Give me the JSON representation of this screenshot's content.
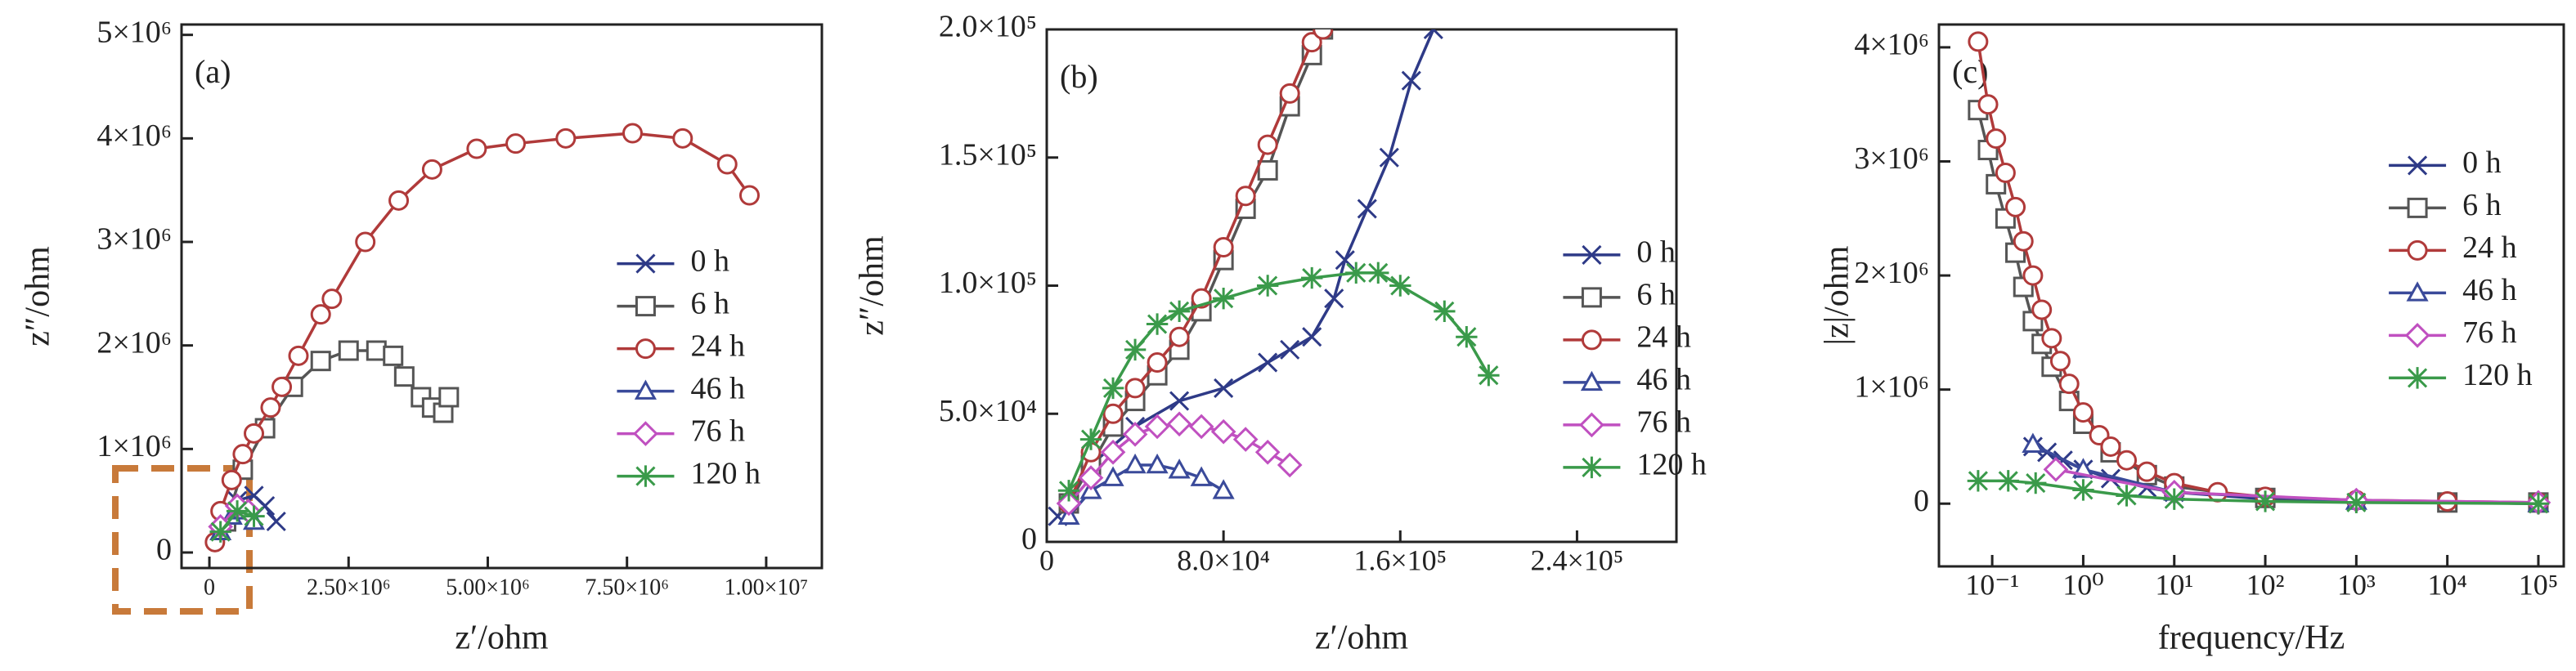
{
  "chart_data": [
    {
      "type": "scatter-line",
      "panel_label": "(a)",
      "xlabel": "z′/ohm",
      "ylabel": "z″/ohm",
      "xlim": [
        -500000,
        11000000
      ],
      "ylim": [
        -150000,
        5100000
      ],
      "xticks": [
        0,
        {
          "value": 2500000,
          "label": "2.50×10⁶"
        },
        {
          "value": 5000000,
          "label": "5.00×10⁶"
        },
        {
          "value": 7500000,
          "label": "7.50×10⁶"
        },
        {
          "value": 10000000,
          "label": "1.00×10⁷"
        }
      ],
      "yticks": [
        0,
        {
          "value": 1000000,
          "label": "1×10⁶"
        },
        {
          "value": 2000000,
          "label": "2×10⁶"
        },
        {
          "value": 3000000,
          "label": "3×10⁶"
        },
        {
          "value": 4000000,
          "label": "4×10⁶"
        },
        {
          "value": 5000000,
          "label": "5×10⁶"
        }
      ],
      "series": [
        {
          "name": "0 h",
          "color": "#2e3a87",
          "marker": "x",
          "x": [
            200000,
            500000,
            800000,
            1000000,
            1200000
          ],
          "values": [
            300000,
            500000,
            550000,
            450000,
            300000
          ]
        },
        {
          "name": "6 h",
          "color": "#555555",
          "marker": "square",
          "x": [
            300000,
            600000,
            1000000,
            1500000,
            2000000,
            2500000,
            3000000,
            3300000,
            3500000,
            3800000,
            4000000,
            4200000,
            4300000
          ],
          "values": [
            300000,
            800000,
            1200000,
            1600000,
            1850000,
            1950000,
            1950000,
            1900000,
            1700000,
            1500000,
            1400000,
            1350000,
            1500000
          ]
        },
        {
          "name": "24 h",
          "color": "#b03a3a",
          "marker": "circle",
          "x": [
            100000,
            200000,
            400000,
            600000,
            800000,
            1100000,
            1300000,
            1600000,
            2000000,
            2200000,
            2800000,
            3400000,
            4000000,
            4800000,
            5500000,
            6400000,
            7600000,
            8500000,
            9300000,
            9700000
          ],
          "values": [
            100000,
            400000,
            700000,
            950000,
            1150000,
            1400000,
            1600000,
            1900000,
            2300000,
            2450000,
            3000000,
            3400000,
            3700000,
            3900000,
            3950000,
            4000000,
            4050000,
            4000000,
            3750000,
            3450000
          ]
        },
        {
          "name": "46 h",
          "color": "#3a4a9a",
          "marker": "triangle",
          "x": [
            200000,
            400000,
            600000,
            800000
          ],
          "values": [
            200000,
            350000,
            400000,
            300000
          ]
        },
        {
          "name": "76 h",
          "color": "#c050c0",
          "marker": "diamond",
          "x": [
            200000,
            500000,
            700000
          ],
          "values": [
            250000,
            450000,
            400000
          ]
        },
        {
          "name": "120 h",
          "color": "#3a9a4a",
          "marker": "asterisk",
          "x": [
            200000,
            500000,
            800000
          ],
          "values": [
            200000,
            400000,
            350000
          ]
        }
      ]
    },
    {
      "type": "scatter-line",
      "panel_label": "(b)",
      "xlabel": "z′/ohm",
      "ylabel": "z″/ohm",
      "xlim": [
        0,
        285000
      ],
      "ylim": [
        0,
        200000
      ],
      "xticks": [
        0,
        {
          "value": 80000,
          "label": "8.0×10⁴"
        },
        {
          "value": 160000,
          "label": "1.6×10⁵"
        },
        {
          "value": 240000,
          "label": "2.4×10⁵"
        }
      ],
      "yticks": [
        0,
        {
          "value": 50000,
          "label": "5.0×10⁴"
        },
        {
          "value": 100000,
          "label": "1.0×10⁵"
        },
        {
          "value": 150000,
          "label": "1.5×10⁵"
        },
        {
          "value": 200000,
          "label": "2.0×10⁵"
        }
      ],
      "series": [
        {
          "name": "0 h",
          "color": "#2e3a87",
          "marker": "x",
          "x": [
            5000,
            20000,
            40000,
            60000,
            80000,
            100000,
            110000,
            120000,
            130000,
            135000,
            145000,
            155000,
            165000,
            175000
          ],
          "values": [
            10000,
            30000,
            45000,
            55000,
            60000,
            70000,
            75000,
            80000,
            95000,
            110000,
            130000,
            150000,
            180000,
            200000
          ]
        },
        {
          "name": "6 h",
          "color": "#555555",
          "marker": "square",
          "x": [
            10000,
            20000,
            30000,
            40000,
            50000,
            60000,
            70000,
            80000,
            90000,
            100000,
            110000,
            120000,
            125000
          ],
          "values": [
            15000,
            30000,
            45000,
            55000,
            65000,
            75000,
            90000,
            110000,
            130000,
            145000,
            170000,
            190000,
            200000
          ]
        },
        {
          "name": "24 h",
          "color": "#b03a3a",
          "marker": "circle",
          "x": [
            10000,
            20000,
            30000,
            40000,
            50000,
            60000,
            70000,
            80000,
            90000,
            100000,
            110000,
            120000,
            125000
          ],
          "values": [
            15000,
            35000,
            50000,
            60000,
            70000,
            80000,
            95000,
            115000,
            135000,
            155000,
            175000,
            195000,
            200000
          ]
        },
        {
          "name": "46 h",
          "color": "#3a4a9a",
          "marker": "triangle",
          "x": [
            10000,
            20000,
            30000,
            40000,
            50000,
            60000,
            70000,
            80000
          ],
          "values": [
            10000,
            20000,
            25000,
            30000,
            30000,
            28000,
            25000,
            20000
          ]
        },
        {
          "name": "76 h",
          "color": "#c050c0",
          "marker": "diamond",
          "x": [
            10000,
            20000,
            30000,
            40000,
            50000,
            60000,
            70000,
            80000,
            90000,
            100000,
            110000
          ],
          "values": [
            15000,
            25000,
            35000,
            42000,
            45000,
            46000,
            45000,
            43000,
            40000,
            35000,
            30000
          ]
        },
        {
          "name": "120 h",
          "color": "#3a9a4a",
          "marker": "asterisk",
          "x": [
            10000,
            20000,
            30000,
            40000,
            50000,
            60000,
            80000,
            100000,
            120000,
            140000,
            150000,
            160000,
            180000,
            190000,
            200000
          ],
          "values": [
            20000,
            40000,
            60000,
            75000,
            85000,
            90000,
            95000,
            100000,
            103000,
            105000,
            105000,
            100000,
            90000,
            80000,
            65000
          ]
        }
      ]
    },
    {
      "type": "scatter-line",
      "panel_label": "(c)",
      "xlabel": "frequency/Hz",
      "ylabel": "|z|/ohm",
      "xscale": "log",
      "xlim": [
        0.026,
        190000
      ],
      "ylim": [
        -550000,
        4200000
      ],
      "xticks": [
        {
          "value": 0.1,
          "label": "10⁻¹"
        },
        {
          "value": 1,
          "label": "10⁰"
        },
        {
          "value": 10,
          "label": "10¹"
        },
        {
          "value": 100,
          "label": "10²"
        },
        {
          "value": 1000,
          "label": "10³"
        },
        {
          "value": 10000,
          "label": "10⁴"
        },
        {
          "value": 100000,
          "label": "10⁵"
        }
      ],
      "yticks": [
        0,
        {
          "value": 1000000,
          "label": "1×10⁶"
        },
        {
          "value": 2000000,
          "label": "2×10⁶"
        },
        {
          "value": 3000000,
          "label": "3×10⁶"
        },
        {
          "value": 4000000,
          "label": "4×10⁶"
        }
      ],
      "series": [
        {
          "name": "0 h",
          "color": "#2e3a87",
          "marker": "x",
          "x": [
            0.28,
            0.4,
            0.6,
            1,
            2,
            5,
            10,
            100,
            10000,
            100000
          ],
          "values": [
            500000,
            450000,
            380000,
            300000,
            220000,
            140000,
            100000,
            40000,
            10000,
            0
          ]
        },
        {
          "name": "6 h",
          "color": "#555555",
          "marker": "square",
          "x": [
            0.07,
            0.09,
            0.11,
            0.14,
            0.18,
            0.22,
            0.28,
            0.35,
            0.45,
            0.7,
            1,
            2,
            5,
            10,
            100,
            10000,
            100000
          ],
          "values": [
            3450000,
            3100000,
            2800000,
            2500000,
            2200000,
            1900000,
            1600000,
            1400000,
            1200000,
            900000,
            700000,
            450000,
            250000,
            150000,
            50000,
            10000,
            10000
          ]
        },
        {
          "name": "24 h",
          "color": "#b03a3a",
          "marker": "circle",
          "x": [
            0.07,
            0.09,
            0.11,
            0.14,
            0.18,
            0.22,
            0.28,
            0.35,
            0.45,
            0.56,
            0.7,
            1,
            1.5,
            2,
            3,
            5,
            10,
            30,
            100,
            1000,
            10000,
            100000
          ],
          "values": [
            4050000,
            3500000,
            3200000,
            2900000,
            2600000,
            2300000,
            2000000,
            1700000,
            1450000,
            1250000,
            1050000,
            800000,
            600000,
            500000,
            380000,
            280000,
            180000,
            100000,
            60000,
            30000,
            20000,
            10000
          ]
        },
        {
          "name": "46 h",
          "color": "#3a4a9a",
          "marker": "triangle",
          "x": [
            0.28,
            1,
            10,
            1000,
            100000
          ],
          "values": [
            520000,
            300000,
            100000,
            20000,
            0
          ]
        },
        {
          "name": "76 h",
          "color": "#c050c0",
          "marker": "diamond",
          "x": [
            0.5,
            10,
            1000,
            100000
          ],
          "values": [
            300000,
            100000,
            30000,
            10000
          ]
        },
        {
          "name": "120 h",
          "color": "#3a9a4a",
          "marker": "asterisk",
          "x": [
            0.07,
            0.15,
            0.3,
            1,
            3,
            10,
            100,
            1000,
            100000
          ],
          "values": [
            200000,
            200000,
            180000,
            120000,
            70000,
            40000,
            20000,
            10000,
            0
          ]
        }
      ]
    }
  ]
}
